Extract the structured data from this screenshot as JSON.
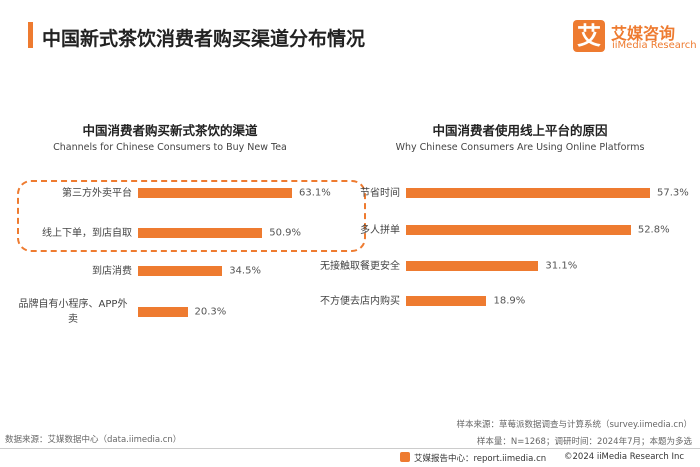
{
  "header": {
    "title": "中国新式茶饮消费者购买渠道分布情况",
    "logo_mark": "艾",
    "logo_cn": "艾媒咨询",
    "logo_en": "iiMedia Research"
  },
  "chart_data": [
    {
      "type": "bar",
      "orientation": "horizontal",
      "title": "中国消费者购买新式茶饮的渠道",
      "subtitle": "Channels for Chinese Consumers to Buy New Tea",
      "categories": [
        "第三方外卖平台",
        "线上下单，到店自取",
        "到店消费",
        "品牌自有小程序、APP外卖"
      ],
      "values": [
        63.1,
        50.9,
        34.5,
        20.3
      ],
      "value_labels": [
        "63.1%",
        "50.9%",
        "34.5%",
        "20.3%"
      ],
      "color": "#ee7b30"
    },
    {
      "type": "bar",
      "orientation": "horizontal",
      "title": "中国消费者使用线上平台的原因",
      "subtitle": "Why Chinese Consumers Are Using Online Platforms",
      "categories": [
        "节省时间",
        "多人拼单",
        "无接触取餐更安全",
        "不方便去店内购买"
      ],
      "values": [
        57.3,
        52.8,
        31.1,
        18.9
      ],
      "value_labels": [
        "57.3%",
        "52.8%",
        "31.1%",
        "18.9%"
      ],
      "color": "#ee7b30"
    }
  ],
  "footer": {
    "source": "数据来源：艾媒数据中心（data.iimedia.cn）",
    "sample_source": "样本来源：草莓派数据调查与计算系统（survey.iimedia.cn）",
    "sample_info": "样本量：N=1268；调研时间：2024年7月；本题为多选",
    "report_center": "艾媒报告中心：report.iimedia.cn",
    "copyright": "©2024  iiMedia Research  Inc"
  }
}
